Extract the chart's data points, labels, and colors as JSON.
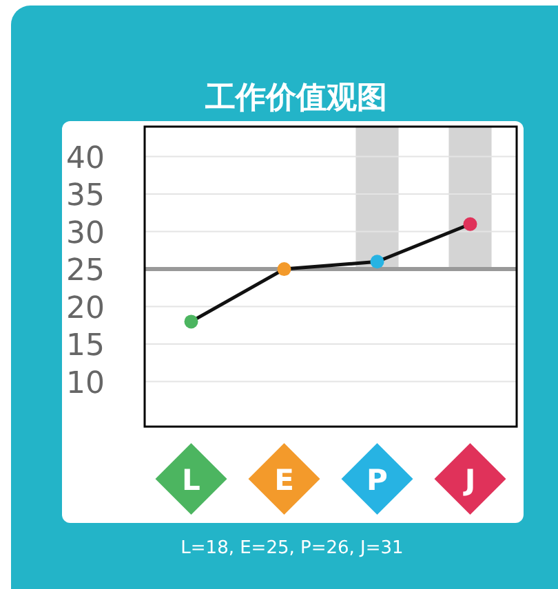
{
  "chart_data": {
    "type": "line",
    "title": "工作价值观图",
    "categories": [
      "L",
      "E",
      "P",
      "J"
    ],
    "values": [
      18,
      25,
      26,
      31
    ],
    "color": "#111111",
    "colors": [
      "#4cb560",
      "#f39a2b",
      "#27b3e3",
      "#e0325a"
    ],
    "ylim": [
      4,
      44
    ],
    "yticks": [
      10,
      15,
      20,
      25,
      30,
      35,
      40
    ],
    "grid": "y",
    "marker": "circle",
    "line_style": "solid",
    "ref_lines": [
      {
        "axis": "y",
        "value": 25,
        "color": "#999999"
      }
    ],
    "bands": [
      {
        "axis": "x",
        "from": "P",
        "to": "P",
        "color": "#d4d4d4"
      },
      {
        "axis": "x",
        "from": "J",
        "to": "J",
        "color": "#d4d4d4"
      }
    ],
    "annotations": [
      "L=18, E=25, P=26, J=31"
    ]
  }
}
